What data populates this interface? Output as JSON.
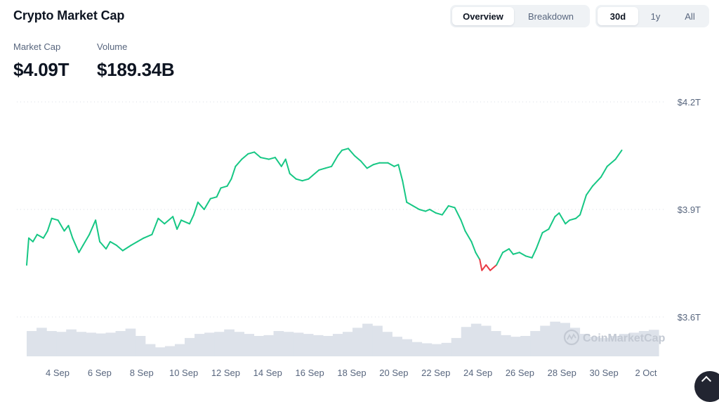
{
  "header": {
    "title": "Crypto Market Cap",
    "view_tabs": [
      {
        "label": "Overview",
        "active": true
      },
      {
        "label": "Breakdown",
        "active": false
      }
    ],
    "range_tabs": [
      {
        "label": "30d",
        "active": true
      },
      {
        "label": "1y",
        "active": false
      },
      {
        "label": "All",
        "active": false
      }
    ]
  },
  "stats": {
    "market_cap": {
      "label": "Market Cap",
      "value": "$4.09T"
    },
    "volume": {
      "label": "Volume",
      "value": "$189.34B"
    }
  },
  "watermark": {
    "text": "CoinMarketCap"
  },
  "colors": {
    "up": "#16c784",
    "down": "#ea3943",
    "volume": "#dde2ea",
    "grid": "#d9dee6",
    "axis_text": "#58667e"
  },
  "chart_data": {
    "type": "line",
    "title": "",
    "xlabel": "",
    "ylabel": "",
    "x_tick_labels": [
      "4 Sep",
      "6 Sep",
      "8 Sep",
      "10 Sep",
      "12 Sep",
      "14 Sep",
      "16 Sep",
      "18 Sep",
      "20 Sep",
      "22 Sep",
      "24 Sep",
      "26 Sep",
      "28 Sep",
      "30 Sep",
      "2 Oct"
    ],
    "y_tick_labels": [
      "$4.2T",
      "$3.9T",
      "$3.6T"
    ],
    "y_ticks": [
      4.2,
      3.9,
      3.6
    ],
    "ylim": [
      3.6,
      4.2
    ],
    "x_range_days": [
      3,
      33.6
    ],
    "grid": "horizontal dotted",
    "threshold": 3.75,
    "series": [
      {
        "unit": "T",
        "points": [
          [
            3.0,
            3.745
          ],
          [
            3.1,
            3.82
          ],
          [
            3.3,
            3.81
          ],
          [
            3.5,
            3.83
          ],
          [
            3.8,
            3.82
          ],
          [
            4.0,
            3.84
          ],
          [
            4.2,
            3.875
          ],
          [
            4.5,
            3.87
          ],
          [
            4.8,
            3.84
          ],
          [
            5.0,
            3.855
          ],
          [
            5.2,
            3.82
          ],
          [
            5.5,
            3.78
          ],
          [
            5.7,
            3.8
          ],
          [
            6.0,
            3.83
          ],
          [
            6.3,
            3.87
          ],
          [
            6.5,
            3.81
          ],
          [
            6.8,
            3.79
          ],
          [
            7.0,
            3.81
          ],
          [
            7.3,
            3.8
          ],
          [
            7.6,
            3.785
          ],
          [
            8.0,
            3.8
          ],
          [
            8.3,
            3.81
          ],
          [
            8.6,
            3.82
          ],
          [
            9.0,
            3.83
          ],
          [
            9.3,
            3.875
          ],
          [
            9.6,
            3.86
          ],
          [
            10.0,
            3.88
          ],
          [
            10.2,
            3.845
          ],
          [
            10.4,
            3.87
          ],
          [
            10.8,
            3.86
          ],
          [
            11.0,
            3.885
          ],
          [
            11.2,
            3.92
          ],
          [
            11.5,
            3.9
          ],
          [
            11.8,
            3.93
          ],
          [
            12.1,
            3.935
          ],
          [
            12.3,
            3.96
          ],
          [
            12.6,
            3.965
          ],
          [
            12.8,
            3.985
          ],
          [
            13.0,
            4.02
          ],
          [
            13.3,
            4.04
          ],
          [
            13.6,
            4.055
          ],
          [
            13.9,
            4.06
          ],
          [
            14.2,
            4.045
          ],
          [
            14.6,
            4.04
          ],
          [
            14.9,
            4.045
          ],
          [
            15.2,
            4.02
          ],
          [
            15.4,
            4.04
          ],
          [
            15.6,
            4.0
          ],
          [
            15.9,
            3.985
          ],
          [
            16.2,
            3.98
          ],
          [
            16.5,
            3.985
          ],
          [
            16.7,
            3.995
          ],
          [
            17.0,
            4.01
          ],
          [
            17.3,
            4.015
          ],
          [
            17.6,
            4.02
          ],
          [
            17.9,
            4.05
          ],
          [
            18.1,
            4.065
          ],
          [
            18.4,
            4.07
          ],
          [
            18.7,
            4.05
          ],
          [
            19.0,
            4.035
          ],
          [
            19.3,
            4.015
          ],
          [
            19.6,
            4.025
          ],
          [
            19.9,
            4.03
          ],
          [
            20.3,
            4.03
          ],
          [
            20.6,
            4.02
          ],
          [
            20.8,
            4.025
          ],
          [
            21.0,
            3.98
          ],
          [
            21.2,
            3.92
          ],
          [
            21.5,
            3.91
          ],
          [
            21.8,
            3.9
          ],
          [
            22.1,
            3.895
          ],
          [
            22.3,
            3.9
          ],
          [
            22.6,
            3.89
          ],
          [
            22.9,
            3.885
          ],
          [
            23.2,
            3.91
          ],
          [
            23.5,
            3.905
          ],
          [
            23.8,
            3.87
          ],
          [
            24.0,
            3.84
          ],
          [
            24.3,
            3.81
          ],
          [
            24.5,
            3.78
          ],
          [
            24.7,
            3.76
          ],
          [
            24.8,
            3.73
          ],
          [
            25.0,
            3.745
          ],
          [
            25.2,
            3.73
          ],
          [
            25.5,
            3.745
          ],
          [
            25.8,
            3.78
          ],
          [
            26.1,
            3.79
          ],
          [
            26.3,
            3.775
          ],
          [
            26.6,
            3.78
          ],
          [
            26.9,
            3.77
          ],
          [
            27.2,
            3.765
          ],
          [
            27.4,
            3.79
          ],
          [
            27.7,
            3.835
          ],
          [
            28.0,
            3.845
          ],
          [
            28.3,
            3.88
          ],
          [
            28.5,
            3.89
          ],
          [
            28.8,
            3.86
          ],
          [
            29.0,
            3.87
          ],
          [
            29.3,
            3.875
          ],
          [
            29.5,
            3.885
          ],
          [
            29.8,
            3.94
          ],
          [
            30.1,
            3.965
          ],
          [
            30.5,
            3.99
          ],
          [
            30.8,
            4.02
          ],
          [
            31.2,
            4.04
          ],
          [
            31.5,
            4.065
          ]
        ]
      }
    ],
    "volume_series": {
      "note": "relative bar heights",
      "values": [
        0.62,
        0.7,
        0.62,
        0.6,
        0.66,
        0.6,
        0.58,
        0.56,
        0.58,
        0.62,
        0.68,
        0.5,
        0.3,
        0.22,
        0.25,
        0.3,
        0.45,
        0.55,
        0.58,
        0.6,
        0.66,
        0.6,
        0.55,
        0.5,
        0.52,
        0.62,
        0.6,
        0.58,
        0.55,
        0.52,
        0.5,
        0.55,
        0.6,
        0.7,
        0.8,
        0.75,
        0.6,
        0.48,
        0.42,
        0.35,
        0.32,
        0.3,
        0.33,
        0.45,
        0.72,
        0.8,
        0.75,
        0.62,
        0.52,
        0.48,
        0.5,
        0.62,
        0.75,
        0.85,
        0.82,
        0.7,
        0.55,
        0.48,
        0.45,
        0.5,
        0.55,
        0.58,
        0.62,
        0.65
      ]
    }
  }
}
